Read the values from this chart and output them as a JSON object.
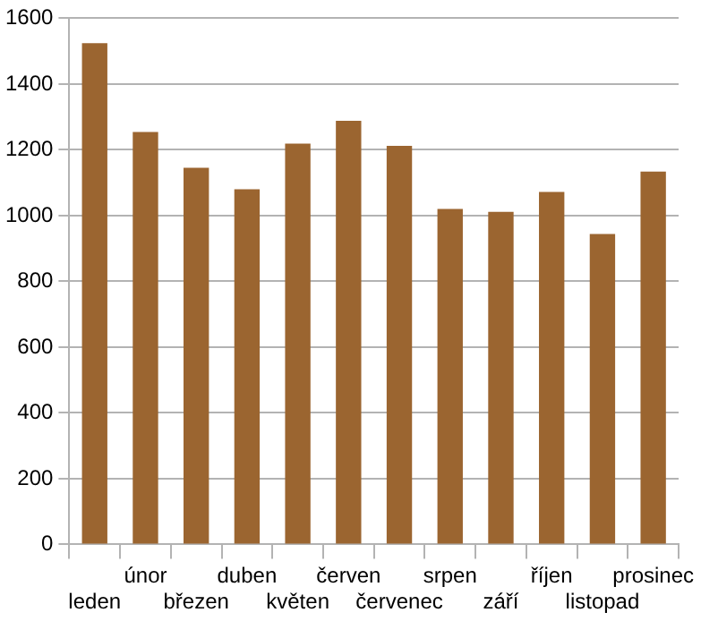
{
  "chart_data": {
    "type": "bar",
    "categories": [
      "leden",
      "únor",
      "březen",
      "duben",
      "květen",
      "červen",
      "červenec",
      "srpen",
      "září",
      "říjen",
      "listopad",
      "prosinec"
    ],
    "values": [
      1524,
      1254,
      1145,
      1080,
      1219,
      1288,
      1212,
      1020,
      1011,
      1072,
      944,
      1134
    ],
    "color": "#9b6530",
    "ylim": [
      0,
      1600
    ],
    "yticks": [
      0,
      200,
      400,
      600,
      800,
      1000,
      1200,
      1400,
      1600
    ],
    "grid": "y",
    "legend": false
  }
}
